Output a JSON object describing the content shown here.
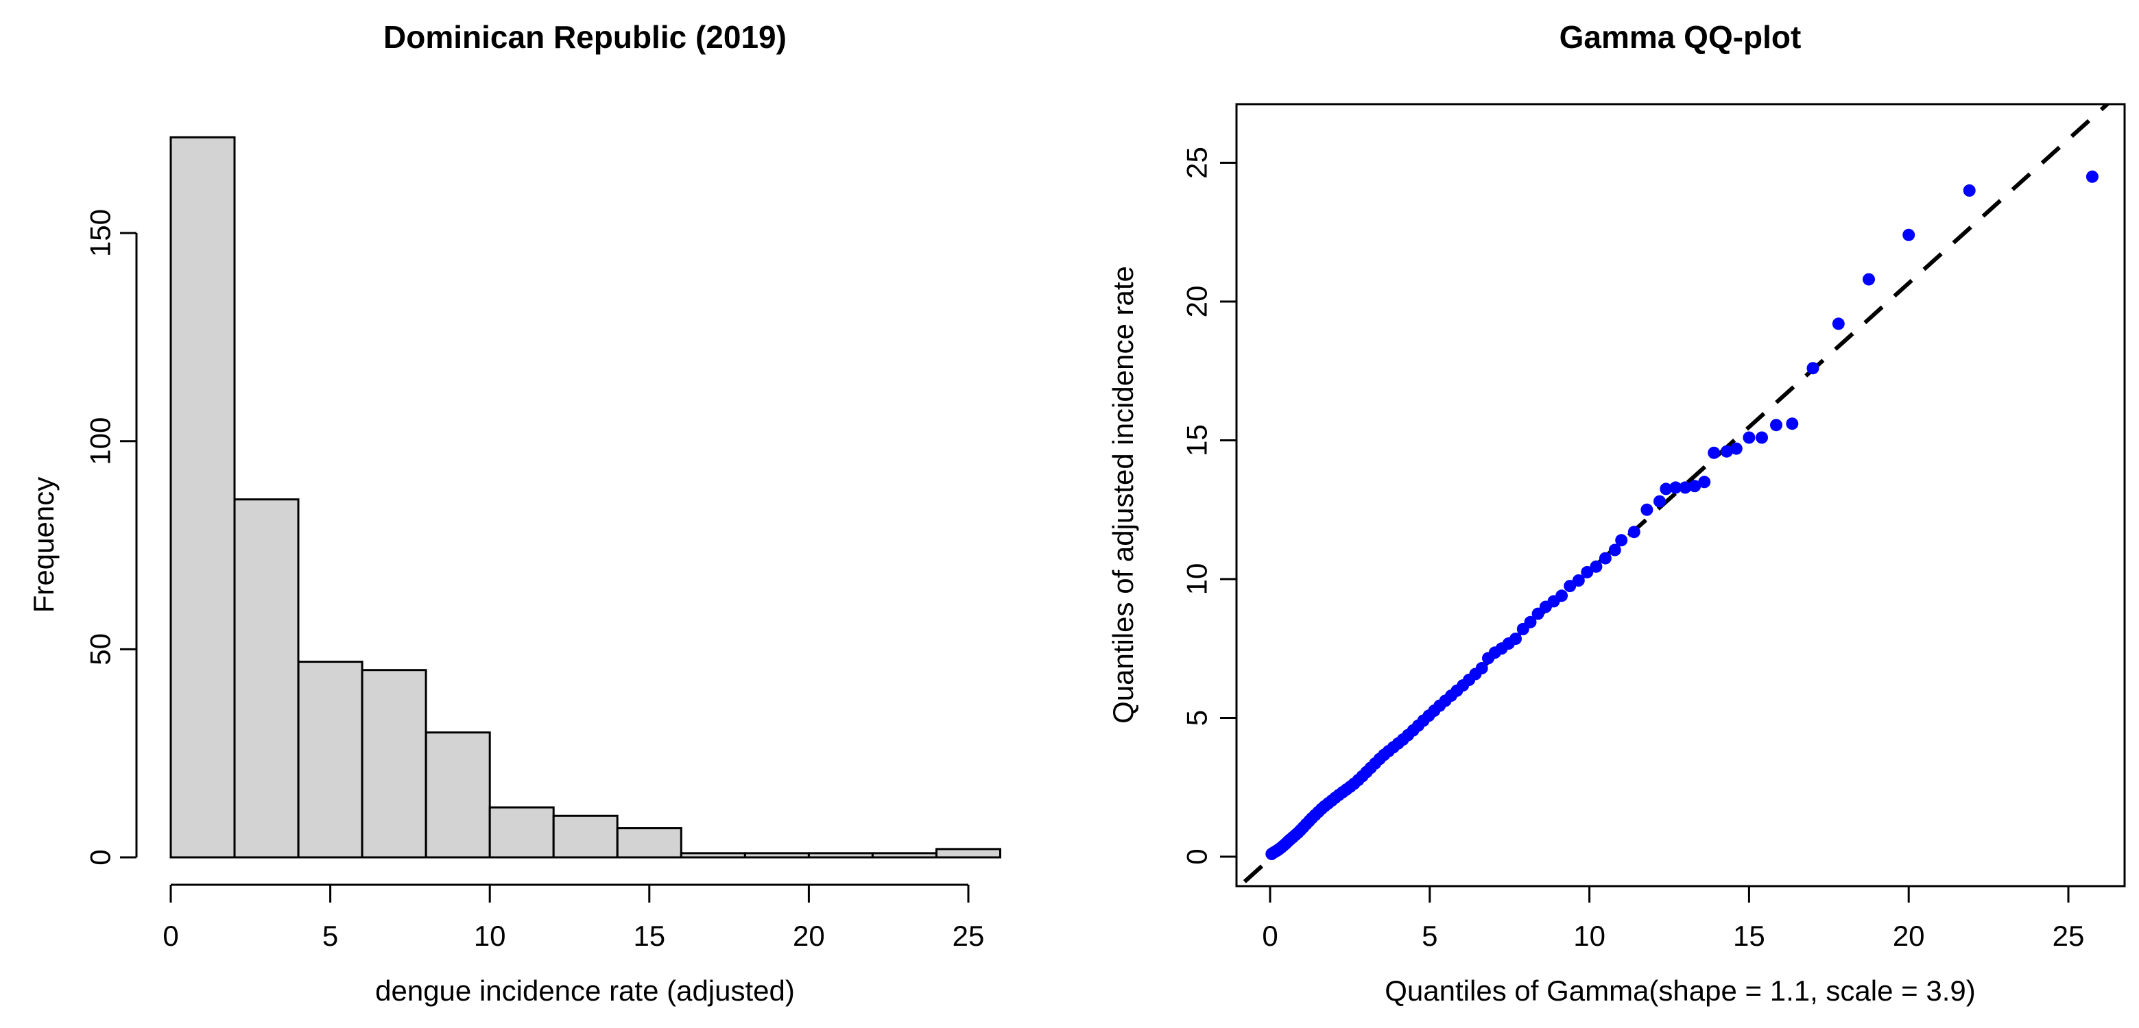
{
  "figure": {
    "background": "#ffffff",
    "axis_color": "#000000",
    "text_color": "#000000"
  },
  "chart_data": [
    {
      "type": "bar",
      "role": "histogram",
      "title": "Dominican Republic (2019)",
      "xlabel": "dengue incidence rate (adjusted)",
      "ylabel": "Frequency",
      "bin_width": 2,
      "bin_edges": [
        0,
        2,
        4,
        6,
        8,
        10,
        12,
        14,
        16,
        18,
        20,
        22,
        24,
        26
      ],
      "counts": [
        173,
        86,
        47,
        45,
        30,
        12,
        10,
        7,
        1,
        1,
        1,
        1,
        2
      ],
      "x_ticks": [
        0,
        5,
        10,
        15,
        20,
        25
      ],
      "y_ticks": [
        0,
        50,
        100,
        150
      ],
      "xlim": [
        0,
        26
      ],
      "ylim": [
        0,
        173
      ],
      "grid": false,
      "bar_fill": "#d3d3d3",
      "bar_stroke": "#000000"
    },
    {
      "type": "scatter",
      "role": "qq-plot",
      "title": "Gamma QQ-plot",
      "xlabel": "Quantiles of Gamma(shape = 1.1, scale = 3.9)",
      "ylabel": "Quantiles of adjusted incidence rate",
      "x_ticks": [
        0,
        5,
        10,
        15,
        20,
        25
      ],
      "y_ticks": [
        0,
        5,
        10,
        15,
        20,
        25
      ],
      "xlim": [
        -1.05,
        26.8
      ],
      "ylim": [
        -1.1,
        27.2
      ],
      "grid": false,
      "point_color": "#0000ff",
      "reference_line": {
        "style": "dashed",
        "color": "#000000",
        "x1": -0.8,
        "y1": -0.9,
        "x2": 26.5,
        "y2": 27.4
      },
      "points": [
        [
          0.05,
          0.1
        ],
        [
          0.1,
          0.14
        ],
        [
          0.16,
          0.18
        ],
        [
          0.22,
          0.22
        ],
        [
          0.28,
          0.27
        ],
        [
          0.35,
          0.33
        ],
        [
          0.42,
          0.4
        ],
        [
          0.49,
          0.47
        ],
        [
          0.56,
          0.55
        ],
        [
          0.63,
          0.62
        ],
        [
          0.71,
          0.7
        ],
        [
          0.79,
          0.78
        ],
        [
          0.87,
          0.86
        ],
        [
          0.95,
          0.95
        ],
        [
          1.04,
          1.06
        ],
        [
          1.13,
          1.17
        ],
        [
          1.22,
          1.28
        ],
        [
          1.31,
          1.39
        ],
        [
          1.41,
          1.5
        ],
        [
          1.51,
          1.61
        ],
        [
          1.61,
          1.72
        ],
        [
          1.71,
          1.82
        ],
        [
          1.82,
          1.92
        ],
        [
          1.93,
          2.02
        ],
        [
          2.04,
          2.12
        ],
        [
          2.15,
          2.22
        ],
        [
          2.27,
          2.32
        ],
        [
          2.39,
          2.42
        ],
        [
          2.51,
          2.52
        ],
        [
          2.63,
          2.63
        ],
        [
          2.76,
          2.76
        ],
        [
          2.89,
          2.9
        ],
        [
          3.02,
          3.05
        ],
        [
          3.15,
          3.2
        ],
        [
          3.29,
          3.36
        ],
        [
          3.43,
          3.52
        ],
        [
          3.57,
          3.67
        ],
        [
          3.71,
          3.8
        ],
        [
          3.86,
          3.94
        ],
        [
          4.01,
          4.08
        ],
        [
          4.16,
          4.22
        ],
        [
          4.32,
          4.38
        ],
        [
          4.48,
          4.55
        ],
        [
          4.64,
          4.72
        ],
        [
          4.8,
          4.9
        ],
        [
          4.97,
          5.08
        ],
        [
          5.14,
          5.26
        ],
        [
          5.31,
          5.44
        ],
        [
          5.49,
          5.62
        ],
        [
          5.67,
          5.8
        ],
        [
          5.85,
          5.98
        ],
        [
          6.04,
          6.17
        ],
        [
          6.23,
          6.37
        ],
        [
          6.43,
          6.58
        ],
        [
          6.63,
          6.79
        ],
        [
          6.83,
          7.15
        ],
        [
          7.04,
          7.35
        ],
        [
          7.25,
          7.5
        ],
        [
          7.47,
          7.68
        ],
        [
          7.69,
          7.85
        ],
        [
          7.92,
          8.2
        ],
        [
          8.15,
          8.45
        ],
        [
          8.39,
          8.75
        ],
        [
          8.63,
          9.0
        ],
        [
          8.88,
          9.2
        ],
        [
          9.13,
          9.4
        ],
        [
          9.39,
          9.75
        ],
        [
          9.66,
          9.95
        ],
        [
          9.93,
          10.25
        ],
        [
          10.21,
          10.45
        ],
        [
          10.5,
          10.75
        ],
        [
          10.8,
          11.05
        ],
        [
          11.0,
          11.4
        ],
        [
          11.4,
          11.7
        ],
        [
          11.8,
          12.5
        ],
        [
          12.2,
          12.8
        ],
        [
          12.4,
          13.25
        ],
        [
          12.7,
          13.3
        ],
        [
          13.0,
          13.3
        ],
        [
          13.3,
          13.35
        ],
        [
          13.6,
          13.5
        ],
        [
          13.9,
          14.55
        ],
        [
          14.3,
          14.6
        ],
        [
          14.6,
          14.7
        ],
        [
          15.0,
          15.1
        ],
        [
          15.4,
          15.1
        ],
        [
          15.85,
          15.55
        ],
        [
          16.35,
          15.6
        ],
        [
          17.0,
          17.6
        ],
        [
          17.8,
          19.2
        ],
        [
          18.75,
          20.8
        ],
        [
          20.0,
          22.4
        ],
        [
          21.9,
          24.0
        ],
        [
          25.75,
          24.5
        ]
      ]
    }
  ]
}
